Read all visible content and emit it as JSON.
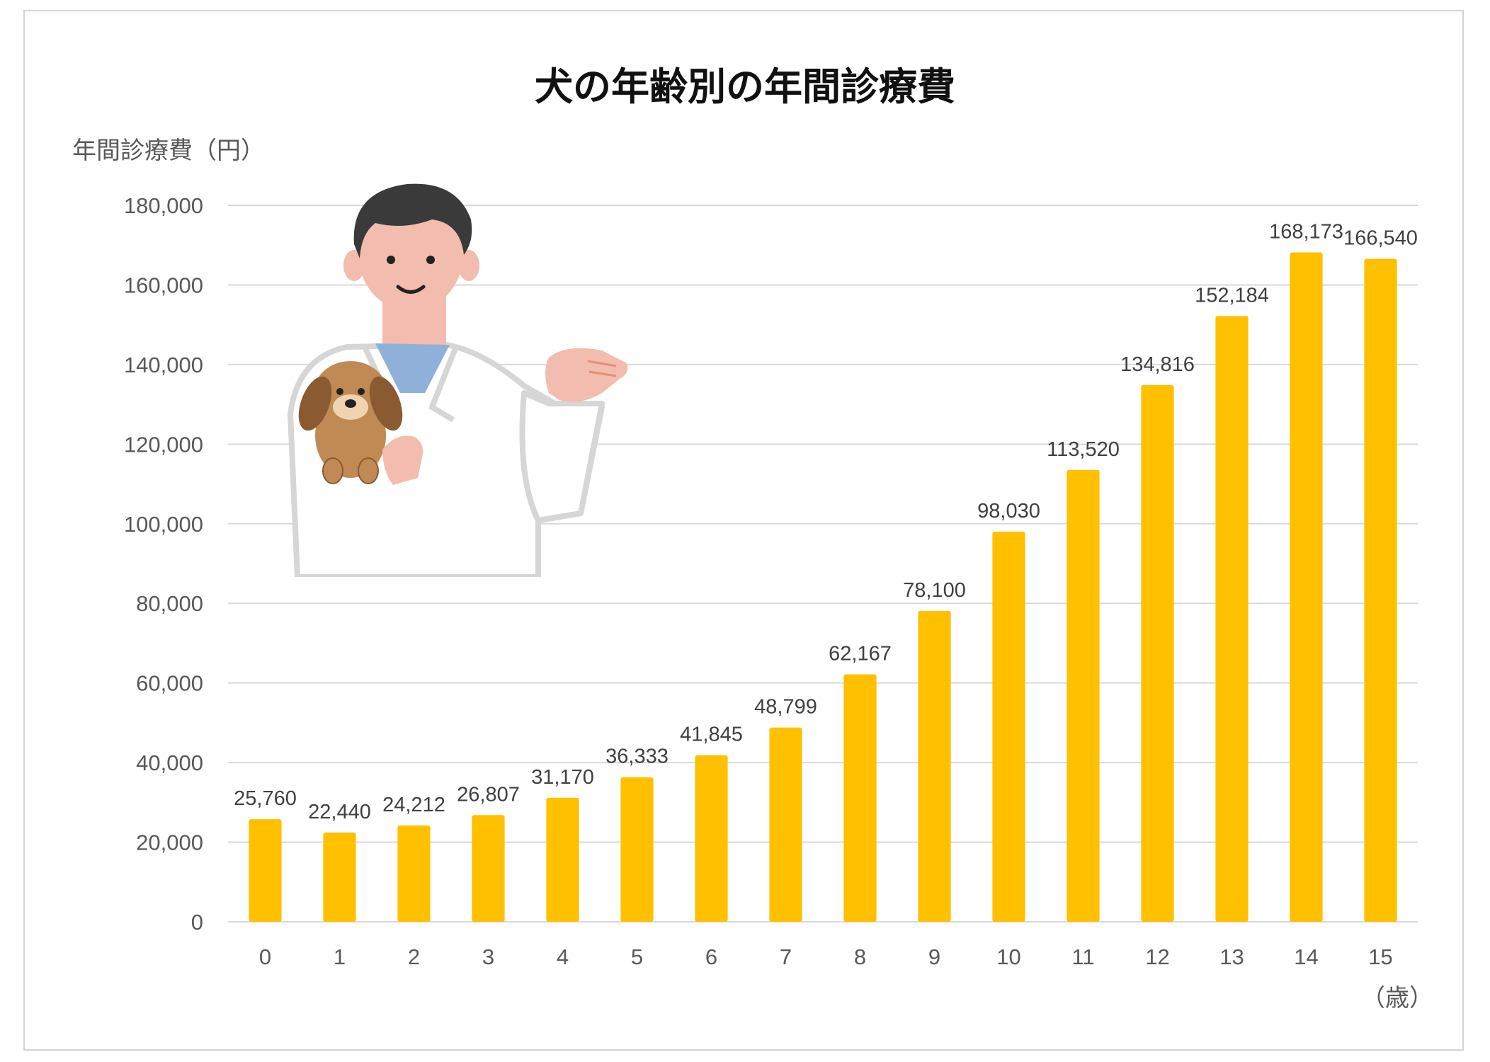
{
  "chart_data": {
    "type": "bar",
    "title": "犬の年齢別の年間診療費",
    "ylabel": "年間診療費（円）",
    "xlabel": "（歳）",
    "categories": [
      "0",
      "1",
      "2",
      "3",
      "4",
      "5",
      "6",
      "7",
      "8",
      "9",
      "10",
      "11",
      "12",
      "13",
      "14",
      "15"
    ],
    "values": [
      25760,
      22440,
      24212,
      26807,
      31170,
      36333,
      41845,
      48799,
      62167,
      78100,
      98030,
      113520,
      134816,
      152184,
      168173,
      166540
    ],
    "value_labels": [
      "25,760",
      "22,440",
      "24,212",
      "26,807",
      "31,170",
      "36,333",
      "41,845",
      "48,799",
      "62,167",
      "78,100",
      "98,030",
      "113,520",
      "134,816",
      "152,184",
      "168,173",
      "166,540"
    ],
    "ylim": [
      0,
      180000
    ],
    "yticks": [
      0,
      20000,
      40000,
      60000,
      80000,
      100000,
      120000,
      140000,
      160000,
      180000
    ],
    "ytick_labels": [
      "0",
      "20,000",
      "40,000",
      "60,000",
      "80,000",
      "100,000",
      "120,000",
      "140,000",
      "160,000",
      "180,000"
    ],
    "grid": true,
    "bar_color": "#FFC000",
    "grid_color": "#d9d9d9"
  },
  "illustration": {
    "subject": "veterinarian-holding-dog",
    "colors": {
      "hair": "#3a3a3a",
      "skin": "#f2bcae",
      "coat": "#ffffff",
      "coat_outline": "#d6d6d6",
      "shirt": "#8fb1d9",
      "dog": "#c08a55",
      "dog_ear": "#8a5a30"
    }
  }
}
